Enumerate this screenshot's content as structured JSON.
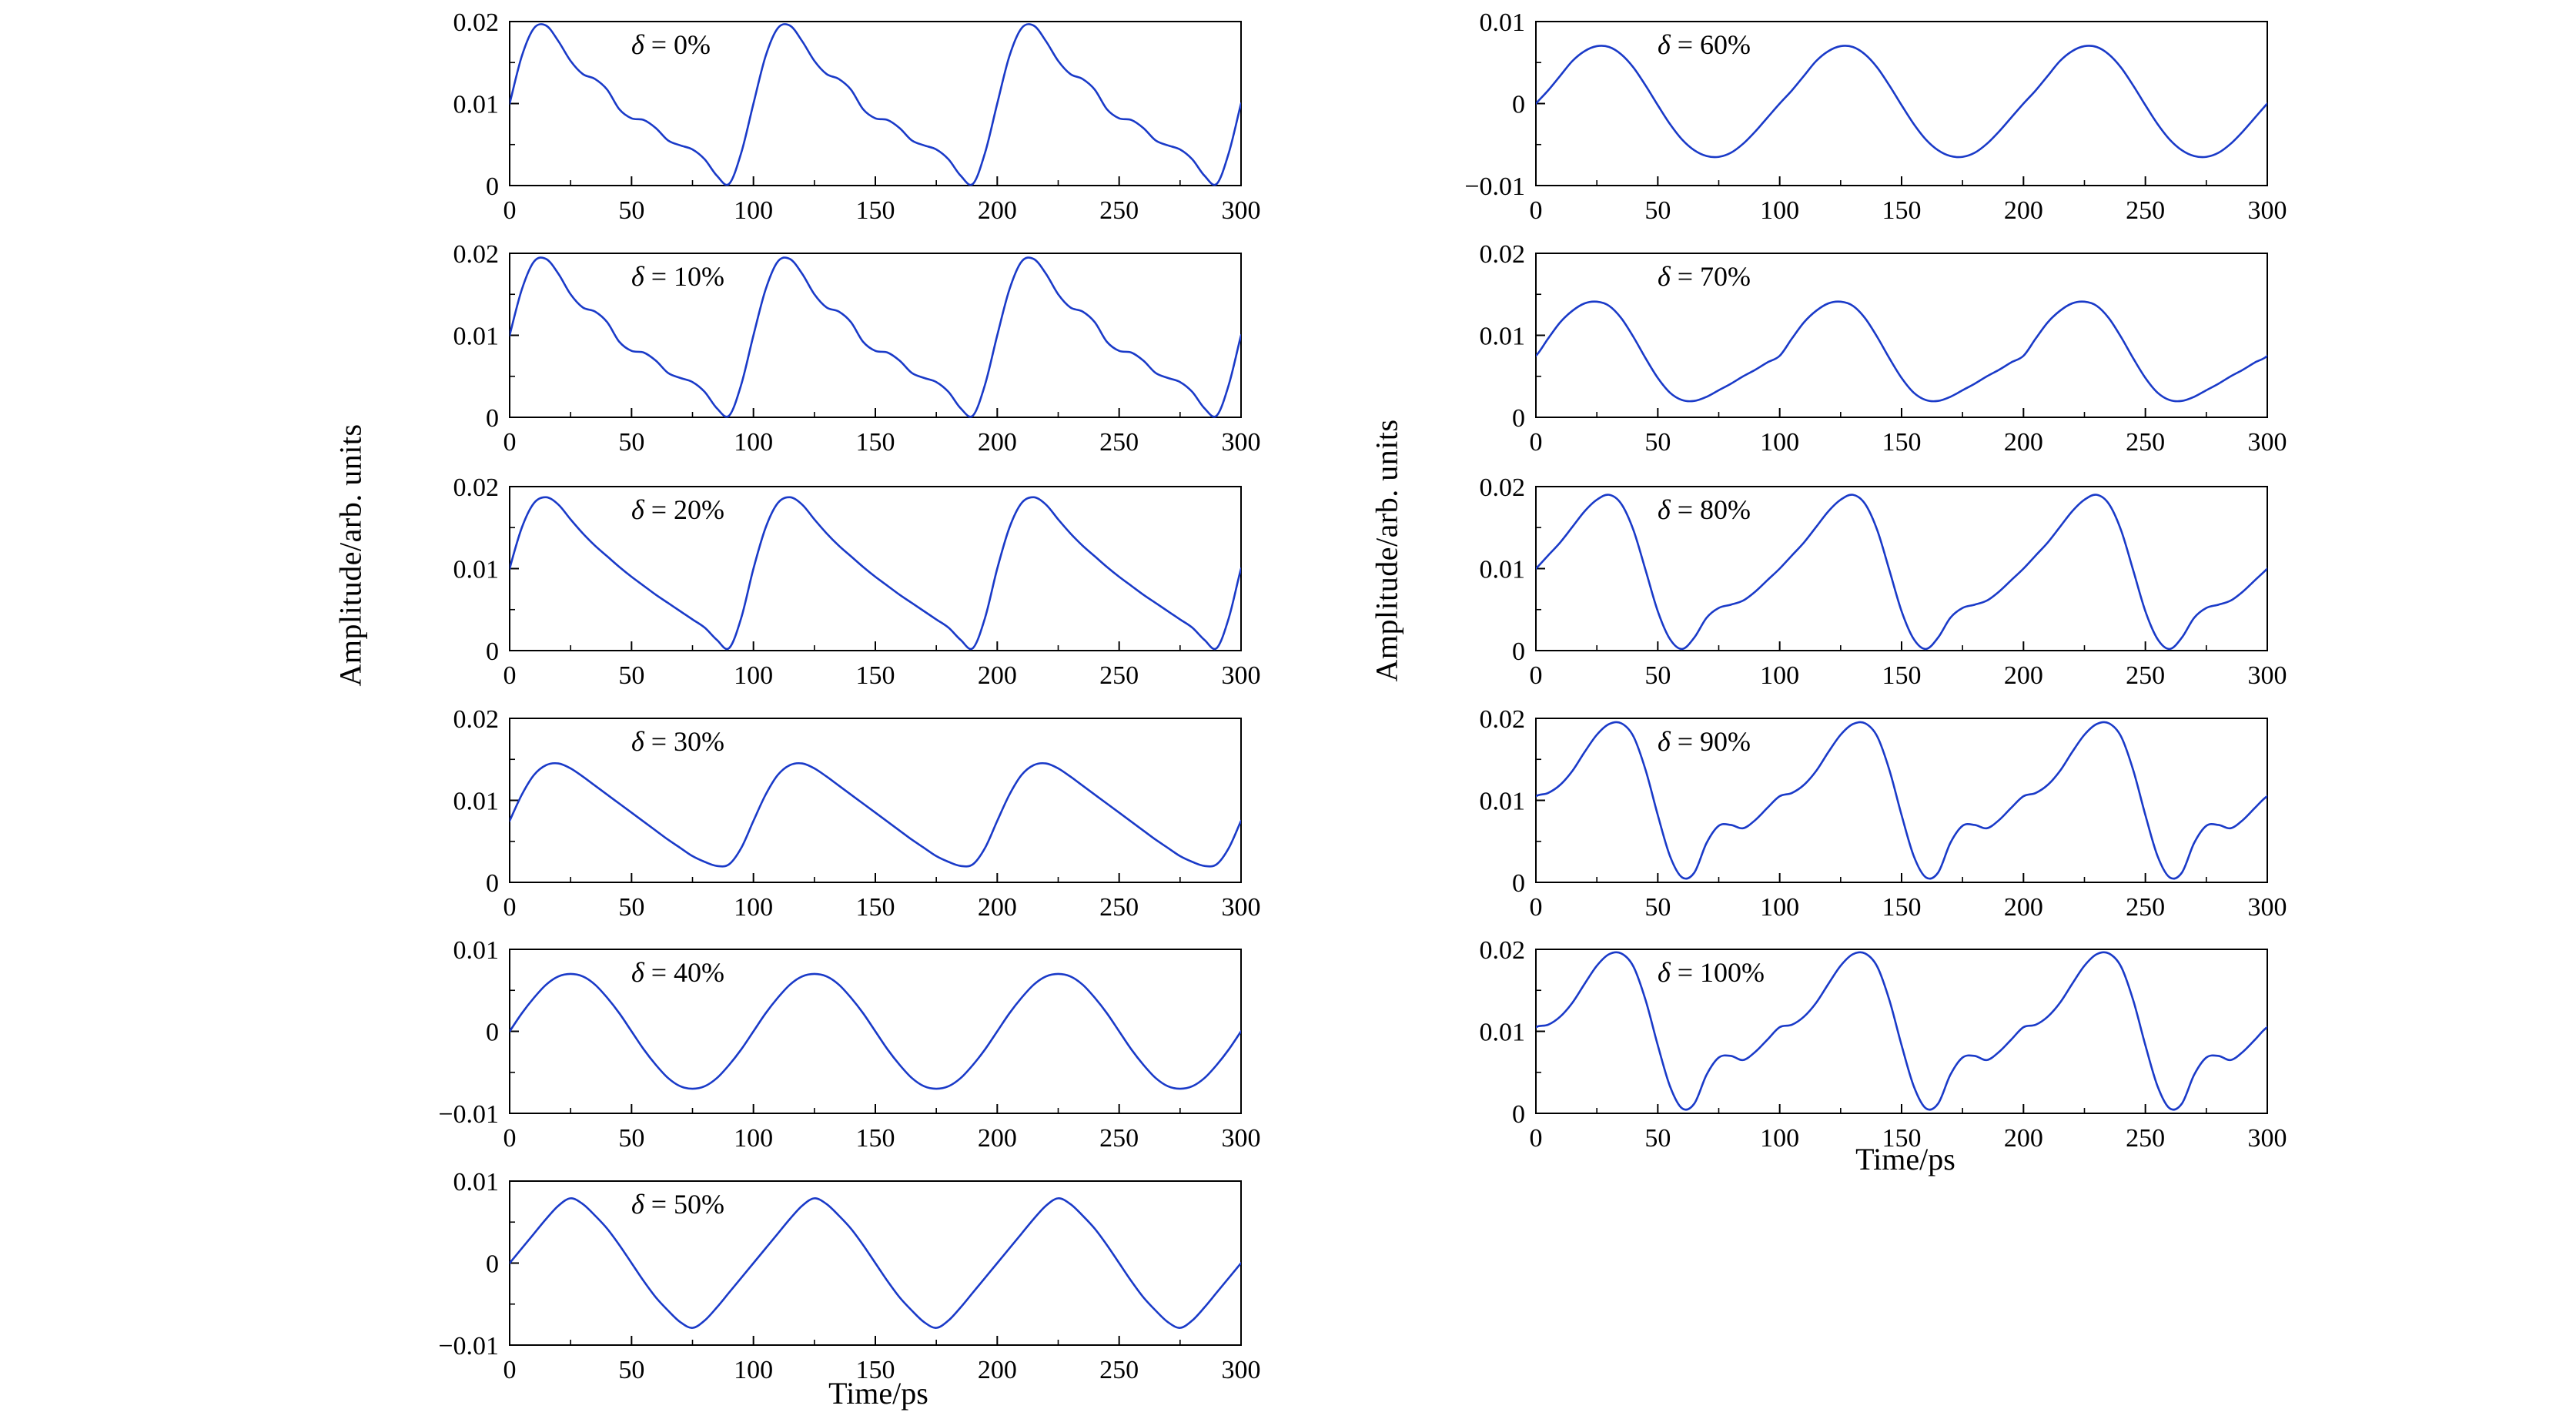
{
  "figure": {
    "background": "#ffffff",
    "line_color": "#1a3ac8",
    "axis_color": "#000000",
    "left_ylabel": "Amplitude/arb. units",
    "right_ylabel": "Amplitude/arb. units",
    "left_xlabel": "Time/ps",
    "right_xlabel": "Time/ps"
  },
  "chart_data": [
    {
      "id": "delta-0",
      "type": "line",
      "column": "left",
      "row": 0,
      "label": "δ = 0%",
      "x": {
        "min": 0,
        "max": 300,
        "ticks": [
          0,
          50,
          100,
          150,
          200,
          250,
          300
        ],
        "minor_step": 25
      },
      "y": {
        "min": 0,
        "max": 0.02,
        "ticks": [
          0,
          0.01,
          0.02
        ],
        "minor_step": 0.005
      },
      "series": {
        "period_ps": 100,
        "sample_step_ps": 5,
        "samples_one_period": [
          0.01,
          0.0158,
          0.0192,
          0.0195,
          0.0176,
          0.0152,
          0.0136,
          0.013,
          0.0117,
          0.0093,
          0.0082,
          0.008,
          0.007,
          0.0055,
          0.0049,
          0.0044,
          0.0032,
          0.0012,
          0.0002,
          0.004
        ]
      }
    },
    {
      "id": "delta-10",
      "type": "line",
      "column": "left",
      "row": 1,
      "label": "δ = 10%",
      "x": {
        "min": 0,
        "max": 300,
        "ticks": [
          0,
          50,
          100,
          150,
          200,
          250,
          300
        ],
        "minor_step": 25
      },
      "y": {
        "min": 0,
        "max": 0.02,
        "ticks": [
          0,
          0.01,
          0.02
        ],
        "minor_step": 0.005
      },
      "series": {
        "period_ps": 100,
        "sample_step_ps": 5,
        "samples_one_period": [
          0.01,
          0.0156,
          0.019,
          0.0193,
          0.0175,
          0.015,
          0.0134,
          0.0129,
          0.0116,
          0.0092,
          0.0081,
          0.0079,
          0.0069,
          0.0054,
          0.0048,
          0.0043,
          0.0031,
          0.0011,
          0.0002,
          0.004
        ]
      }
    },
    {
      "id": "delta-20",
      "type": "line",
      "column": "left",
      "row": 2,
      "label": "δ = 20%",
      "x": {
        "min": 0,
        "max": 300,
        "ticks": [
          0,
          50,
          100,
          150,
          200,
          250,
          300
        ],
        "minor_step": 25
      },
      "y": {
        "min": 0,
        "max": 0.02,
        "ticks": [
          0,
          0.01,
          0.02
        ],
        "minor_step": 0.005
      },
      "series": {
        "period_ps": 100,
        "sample_step_ps": 5,
        "samples_one_period": [
          0.01,
          0.015,
          0.018,
          0.0187,
          0.0178,
          0.016,
          0.0143,
          0.0128,
          0.0115,
          0.0102,
          0.009,
          0.0079,
          0.0068,
          0.0058,
          0.0048,
          0.0038,
          0.0028,
          0.0013,
          0.0003,
          0.004
        ]
      }
    },
    {
      "id": "delta-30",
      "type": "line",
      "column": "left",
      "row": 3,
      "label": "δ = 30%",
      "x": {
        "min": 0,
        "max": 300,
        "ticks": [
          0,
          50,
          100,
          150,
          200,
          250,
          300
        ],
        "minor_step": 25
      },
      "y": {
        "min": 0,
        "max": 0.02,
        "ticks": [
          0,
          0.01,
          0.02
        ],
        "minor_step": 0.005
      },
      "series": {
        "period_ps": 100,
        "sample_step_ps": 5,
        "samples_one_period": [
          0.0075,
          0.0107,
          0.0131,
          0.0143,
          0.0145,
          0.0139,
          0.0129,
          0.0118,
          0.0107,
          0.0096,
          0.0085,
          0.0074,
          0.0063,
          0.0052,
          0.0042,
          0.0032,
          0.0025,
          0.002,
          0.0022,
          0.0042
        ]
      }
    },
    {
      "id": "delta-40",
      "type": "line",
      "column": "left",
      "row": 4,
      "label": "δ = 40%",
      "x": {
        "min": 0,
        "max": 300,
        "ticks": [
          0,
          50,
          100,
          150,
          200,
          250,
          300
        ],
        "minor_step": 25
      },
      "y": {
        "min": -0.01,
        "max": 0.01,
        "ticks": [
          -0.01,
          0,
          0.01
        ],
        "minor_step": 0.005
      },
      "series": {
        "period_ps": 100,
        "sample_step_ps": 5,
        "samples_one_period": [
          0.0,
          0.0022,
          0.0041,
          0.0057,
          0.0067,
          0.007,
          0.0067,
          0.0057,
          0.0041,
          0.0022,
          0.0,
          -0.0022,
          -0.0041,
          -0.0057,
          -0.0067,
          -0.007,
          -0.0067,
          -0.0057,
          -0.0041,
          -0.0022
        ]
      }
    },
    {
      "id": "delta-50",
      "type": "line",
      "column": "left",
      "row": 5,
      "label": "δ = 50%",
      "x": {
        "min": 0,
        "max": 300,
        "ticks": [
          0,
          50,
          100,
          150,
          200,
          250,
          300
        ],
        "minor_step": 25
      },
      "y": {
        "min": -0.01,
        "max": 0.01,
        "ticks": [
          -0.01,
          0,
          0.01
        ],
        "minor_step": 0.005
      },
      "series": {
        "period_ps": 100,
        "sample_step_ps": 5,
        "samples_one_period": [
          0.0,
          0.0018,
          0.0036,
          0.0054,
          0.007,
          0.0079,
          0.0072,
          0.0058,
          0.0042,
          0.0022,
          0.0,
          -0.0022,
          -0.0042,
          -0.0058,
          -0.0072,
          -0.0079,
          -0.007,
          -0.0054,
          -0.0036,
          -0.0018
        ]
      }
    },
    {
      "id": "delta-60",
      "type": "line",
      "column": "right",
      "row": 0,
      "label": "δ = 60%",
      "x": {
        "min": 0,
        "max": 300,
        "ticks": [
          0,
          50,
          100,
          150,
          200,
          250,
          300
        ],
        "minor_step": 25
      },
      "y": {
        "min": -0.01,
        "max": 0.01,
        "ticks": [
          -0.01,
          0,
          0.01
        ],
        "minor_step": 0.005
      },
      "series": {
        "period_ps": 100,
        "sample_step_ps": 5,
        "samples_one_period": [
          0.0,
          0.0016,
          0.0034,
          0.0052,
          0.0064,
          0.007,
          0.0069,
          0.006,
          0.0044,
          0.0022,
          -0.0002,
          -0.0025,
          -0.0044,
          -0.0057,
          -0.0064,
          -0.0065,
          -0.006,
          -0.0049,
          -0.0034,
          -0.0017
        ]
      }
    },
    {
      "id": "delta-70",
      "type": "line",
      "column": "right",
      "row": 1,
      "label": "δ = 70%",
      "x": {
        "min": 0,
        "max": 300,
        "ticks": [
          0,
          50,
          100,
          150,
          200,
          250,
          300
        ],
        "minor_step": 25
      },
      "y": {
        "min": 0,
        "max": 0.02,
        "ticks": [
          0,
          0.01,
          0.02
        ],
        "minor_step": 0.005
      },
      "series": {
        "period_ps": 100,
        "sample_step_ps": 5,
        "samples_one_period": [
          0.0075,
          0.0096,
          0.0116,
          0.013,
          0.0139,
          0.0141,
          0.0136,
          0.0121,
          0.0098,
          0.0072,
          0.0048,
          0.003,
          0.0021,
          0.002,
          0.0025,
          0.0033,
          0.0041,
          0.005,
          0.0058,
          0.0067
        ]
      }
    },
    {
      "id": "delta-80",
      "type": "line",
      "column": "right",
      "row": 2,
      "label": "δ = 80%",
      "x": {
        "min": 0,
        "max": 300,
        "ticks": [
          0,
          50,
          100,
          150,
          200,
          250,
          300
        ],
        "minor_step": 25
      },
      "y": {
        "min": 0,
        "max": 0.02,
        "ticks": [
          0,
          0.01,
          0.02
        ],
        "minor_step": 0.005
      },
      "series": {
        "period_ps": 100,
        "sample_step_ps": 5,
        "samples_one_period": [
          0.01,
          0.0116,
          0.0132,
          0.0151,
          0.017,
          0.0184,
          0.019,
          0.0179,
          0.0147,
          0.0098,
          0.0048,
          0.0014,
          0.0002,
          0.0016,
          0.004,
          0.0052,
          0.0056,
          0.0061,
          0.0072,
          0.0086
        ]
      }
    },
    {
      "id": "delta-90",
      "type": "line",
      "column": "right",
      "row": 3,
      "label": "δ = 90%",
      "x": {
        "min": 0,
        "max": 300,
        "ticks": [
          0,
          50,
          100,
          150,
          200,
          250,
          300
        ],
        "minor_step": 25
      },
      "y": {
        "min": 0,
        "max": 0.02,
        "ticks": [
          0,
          0.01,
          0.02
        ],
        "minor_step": 0.005
      },
      "series": {
        "period_ps": 100,
        "sample_step_ps": 5,
        "samples_one_period": [
          0.0105,
          0.0109,
          0.0119,
          0.0136,
          0.0159,
          0.018,
          0.0193,
          0.0194,
          0.0178,
          0.0137,
          0.0082,
          0.0032,
          0.0006,
          0.0012,
          0.0048,
          0.0069,
          0.007,
          0.0066,
          0.0076,
          0.0091
        ]
      }
    },
    {
      "id": "delta-100",
      "type": "line",
      "column": "right",
      "row": 4,
      "label": "δ = 100%",
      "x": {
        "min": 0,
        "max": 300,
        "ticks": [
          0,
          50,
          100,
          150,
          200,
          250,
          300
        ],
        "minor_step": 25
      },
      "y": {
        "min": 0,
        "max": 0.02,
        "ticks": [
          0,
          0.01,
          0.02
        ],
        "minor_step": 0.005
      },
      "series": {
        "period_ps": 100,
        "sample_step_ps": 5,
        "samples_one_period": [
          0.0105,
          0.0108,
          0.0118,
          0.0135,
          0.0158,
          0.018,
          0.0194,
          0.0195,
          0.0179,
          0.0138,
          0.0083,
          0.0033,
          0.0006,
          0.0012,
          0.0047,
          0.0068,
          0.007,
          0.0065,
          0.0075,
          0.009
        ]
      }
    }
  ]
}
